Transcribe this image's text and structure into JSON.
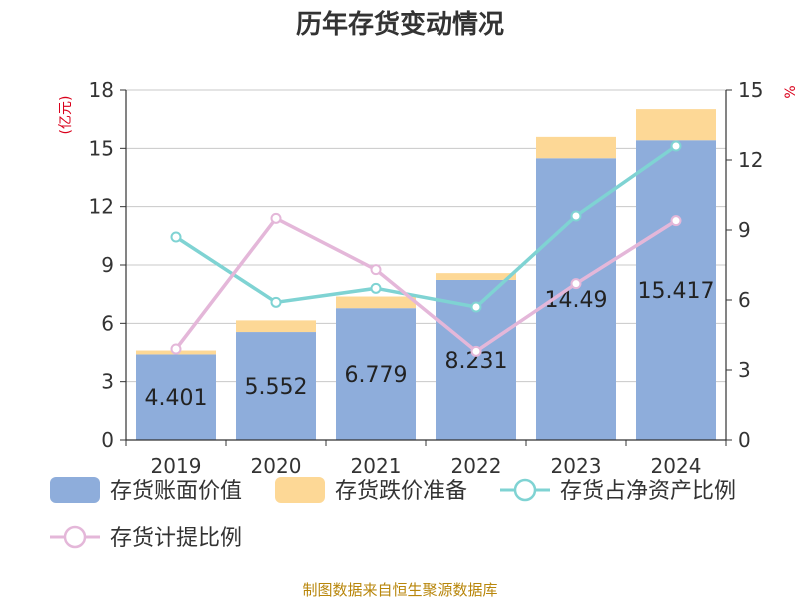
{
  "chart_data": {
    "type": "bar",
    "title": "历年存货变动情况",
    "categories": [
      "2019",
      "2020",
      "2021",
      "2022",
      "2023",
      "2024"
    ],
    "left_axis": {
      "unit": "(亿元)",
      "ylim": [
        0,
        18
      ],
      "ticks": [
        "0",
        "3",
        "6",
        "9",
        "12",
        "15",
        "18"
      ]
    },
    "right_axis": {
      "unit": "%",
      "ylim": [
        0,
        15
      ],
      "ticks": [
        "0",
        "3",
        "6",
        "9",
        "12",
        "15"
      ]
    },
    "series": [
      {
        "name": "存货账面价值",
        "kind": "bar",
        "axis": "left",
        "color": "#8eaddb",
        "values": [
          4.401,
          5.552,
          6.779,
          8.231,
          14.49,
          15.417
        ],
        "labels": [
          "4.401",
          "5.552",
          "6.779",
          "8.231",
          "14.49",
          "15.417"
        ]
      },
      {
        "name": "存货跌价准备",
        "kind": "bar-stack",
        "axis": "left",
        "color": "#fdd896",
        "values": [
          0.2,
          0.6,
          0.6,
          0.35,
          1.1,
          1.6
        ]
      },
      {
        "name": "存货占净资产比例",
        "kind": "line",
        "axis": "right",
        "color": "#7fd3d3",
        "values": [
          8.7,
          5.9,
          6.5,
          5.7,
          9.6,
          12.6
        ]
      },
      {
        "name": "存货计提比例",
        "kind": "line",
        "axis": "right",
        "color": "#e4b7d9",
        "values": [
          3.9,
          9.5,
          7.3,
          3.8,
          6.7,
          9.4
        ]
      }
    ],
    "grid": true,
    "legend": "bottom"
  },
  "source": "制图数据来自恒生聚源数据库"
}
